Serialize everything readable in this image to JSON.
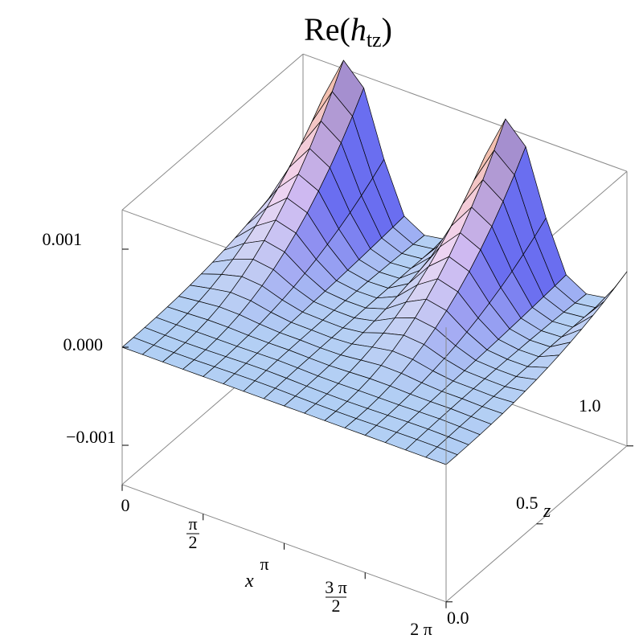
{
  "chart_data": {
    "type": "surface3d",
    "title": {
      "prefix": "Re(",
      "symbol": "h",
      "subscript": "tz",
      "suffix": ")"
    },
    "x_axis": {
      "label": "x",
      "range": [
        0,
        6.283185
      ],
      "ticks": [
        {
          "value": 0,
          "label": "0"
        },
        {
          "value": 1.570796,
          "label": "π/2",
          "numerator": "π",
          "denominator": "2"
        },
        {
          "value": 3.141593,
          "label": "π"
        },
        {
          "value": 4.712389,
          "label": "3π/2",
          "numerator": "3 π",
          "denominator": "2"
        },
        {
          "value": 6.283185,
          "label": "2 π"
        }
      ]
    },
    "z_axis": {
      "label": "z",
      "range": [
        0,
        1
      ],
      "ticks": [
        {
          "value": 0,
          "label": "0.0"
        },
        {
          "value": 0.5,
          "label": "0.5"
        },
        {
          "value": 1,
          "label": "1.0"
        }
      ]
    },
    "value_axis": {
      "label": "",
      "range": [
        -0.0014,
        0.0014
      ],
      "ticks": [
        {
          "value": -0.001,
          "label": "−0.001"
        },
        {
          "value": 0,
          "label": "0.000"
        },
        {
          "value": 0.001,
          "label": "0.001"
        }
      ]
    },
    "surface": {
      "description_formula": "0.0015 * z^3 * (1 + cos(2x + π/2))/2 approx (two ridges along z growing with z)",
      "grid_x": 16,
      "grid_z": 16,
      "peak_value": 0.0015
    },
    "colors": {
      "surface_high": "#f4b895",
      "surface_mid": "#f2d4f2",
      "surface_low": "#9ccdf5",
      "shade_side": "#6a6ef0",
      "mesh": "#000000",
      "box": "#888888"
    },
    "grid": false,
    "boxed": true
  }
}
